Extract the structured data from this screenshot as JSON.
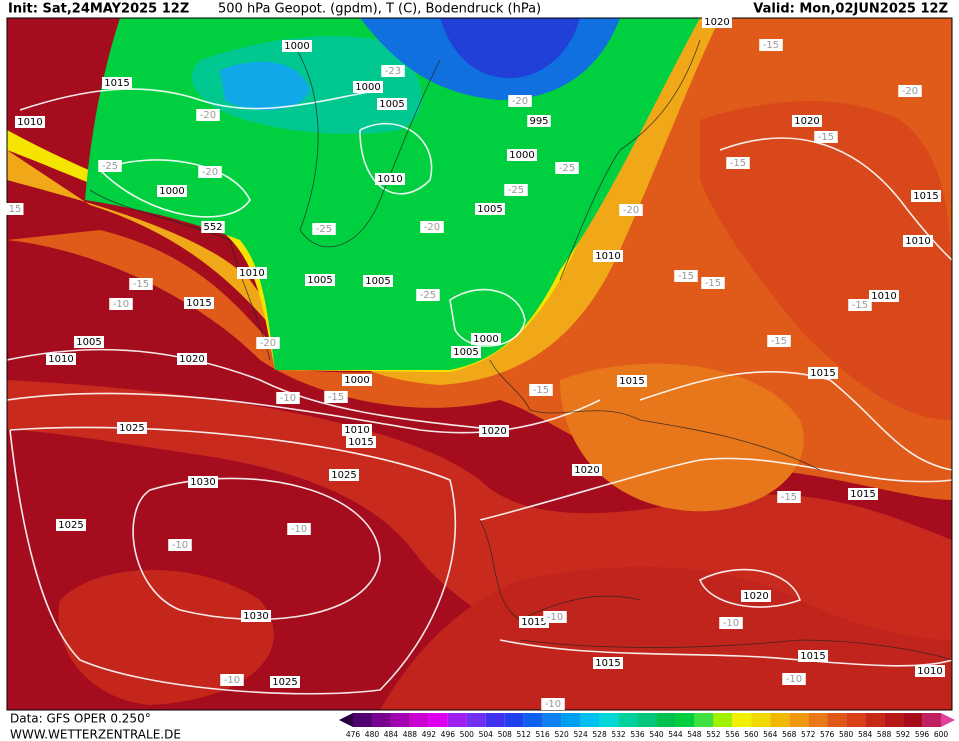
{
  "header": {
    "init": "Init: Sat,24MAY2025 12Z",
    "title": "500 hPa Geopot. (gpdm), T (C), Bodendruck (hPa)",
    "valid": "Valid: Mon,02JUN2025 12Z"
  },
  "footer": {
    "data": "Data: GFS OPER 0.250°",
    "site": "WWW.WETTERZENTRALE.DE"
  },
  "isobar_labels": [
    1000,
    1015,
    1010,
    1000,
    1005,
    1010,
    1000,
    1000,
    1005,
    552,
    1010,
    1005,
    1005,
    1015,
    1005,
    1010,
    1020,
    1000,
    1005,
    1000,
    1010,
    1015,
    1020,
    1025,
    1025,
    1030,
    1025,
    1030,
    1025,
    1020,
    1015,
    1010,
    1020,
    1015,
    1010,
    1010,
    1015,
    1015,
    1020,
    1015,
    1015,
    1015,
    1010,
    1020,
    995
  ],
  "temperature_labels": [
    -15,
    -20,
    -15,
    -15,
    -23,
    -20,
    -25,
    -25,
    -20,
    -20,
    -25,
    -25,
    -15,
    -15,
    -15,
    -15,
    -20,
    -10,
    -15,
    -15,
    -15,
    -10,
    -10,
    -10,
    -10,
    -10,
    -10,
    -10,
    -25,
    -20,
    -20,
    -15,
    -10,
    15
  ],
  "colorbar": {
    "labels": [
      476,
      480,
      484,
      488,
      492,
      496,
      500,
      504,
      508,
      512,
      516,
      520,
      524,
      528,
      532,
      536,
      540,
      544,
      548,
      552,
      556,
      560,
      564,
      568,
      572,
      576,
      580,
      584,
      588,
      592,
      596,
      600
    ],
    "colors": [
      "#2a0040",
      "#50006e",
      "#7a0090",
      "#a000b0",
      "#c800d0",
      "#e000f0",
      "#a020f0",
      "#7030f0",
      "#4030f0",
      "#2040f0",
      "#1060f0",
      "#1080f0",
      "#00a0f0",
      "#00c0f0",
      "#00d8d8",
      "#00d0a0",
      "#00c878",
      "#00c050",
      "#00d040",
      "#40e040",
      "#a0f000",
      "#f0f000",
      "#f0d800",
      "#f0b800",
      "#f09810",
      "#e87818",
      "#e05818",
      "#d84018",
      "#c82818",
      "#b81818",
      "#a80c1c",
      "#c02060",
      "#e040a0"
    ]
  }
}
